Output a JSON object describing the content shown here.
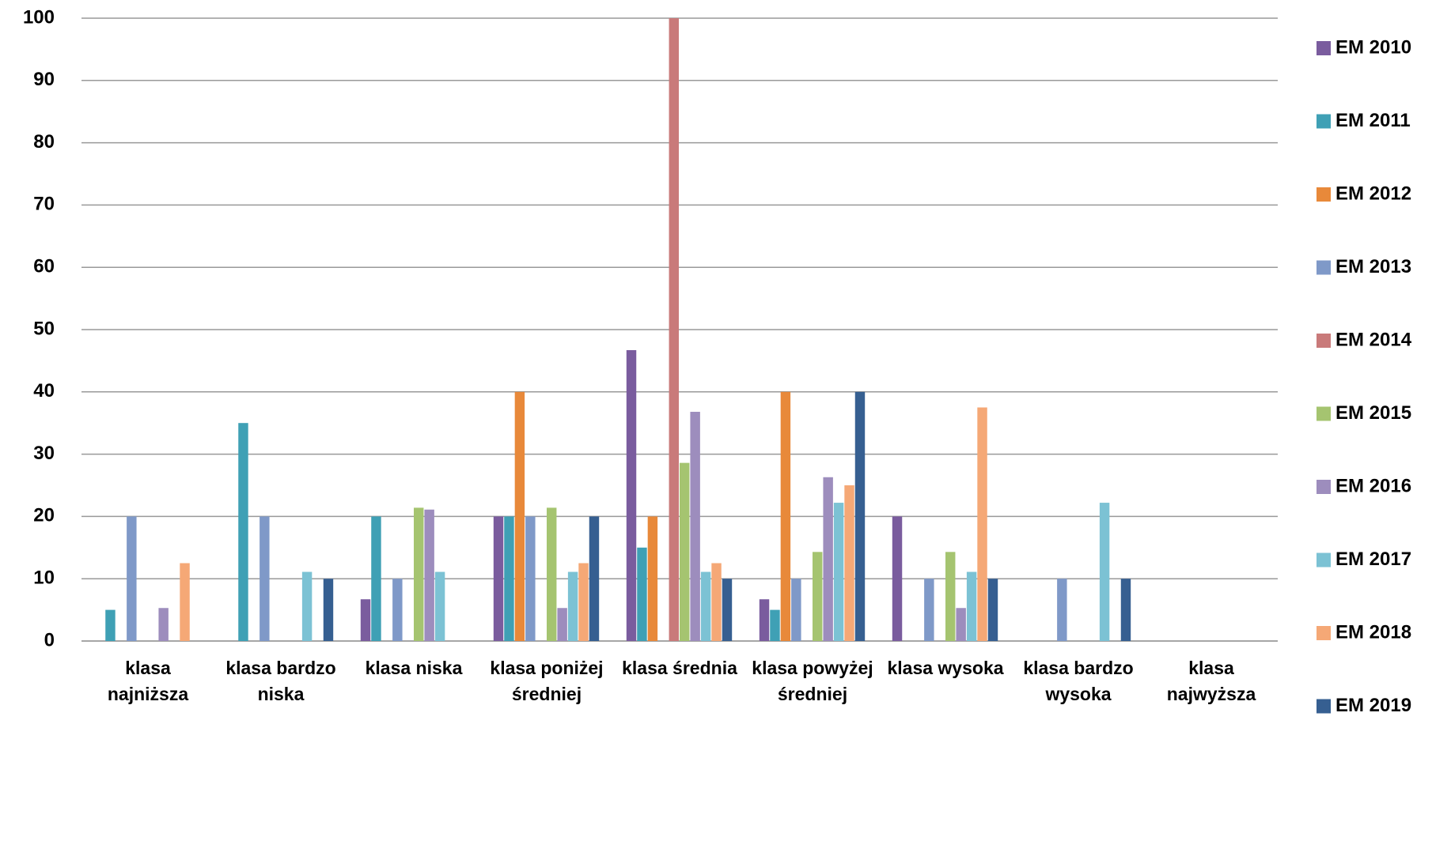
{
  "chart_data": {
    "type": "bar",
    "categories": [
      "klasa najniższa",
      "klasa bardzo niska",
      "klasa niska",
      "klasa poniżej średniej",
      "klasa średnia",
      "klasa powyżej średniej",
      "klasa wysoka",
      "klasa bardzo wysoka",
      "klasa najwyższa"
    ],
    "series": [
      {
        "name": "EM 2010",
        "color": "#7a5c9e",
        "values": [
          0,
          0,
          6.7,
          20,
          46.7,
          6.7,
          20,
          0,
          0
        ]
      },
      {
        "name": "EM 2011",
        "color": "#3fa0b5",
        "values": [
          5,
          35,
          20,
          20,
          15,
          5,
          0,
          0,
          0
        ]
      },
      {
        "name": "EM 2012",
        "color": "#e8893a",
        "values": [
          0,
          0,
          0,
          40,
          20,
          40,
          0,
          0,
          0
        ]
      },
      {
        "name": "EM 2013",
        "color": "#7f99c8",
        "values": [
          20,
          20,
          10,
          20,
          0,
          10,
          10,
          10,
          0
        ]
      },
      {
        "name": "EM 2014",
        "color": "#c97a7a",
        "values": [
          0,
          0,
          0,
          0,
          100,
          0,
          0,
          0,
          0
        ]
      },
      {
        "name": "EM 2015",
        "color": "#a5c470",
        "values": [
          0,
          0,
          21.4,
          21.4,
          28.6,
          14.3,
          14.3,
          0,
          0
        ]
      },
      {
        "name": "EM 2016",
        "color": "#9d8dbd",
        "values": [
          5.3,
          0,
          21.1,
          5.3,
          36.8,
          26.3,
          5.3,
          0,
          0
        ]
      },
      {
        "name": "EM 2017",
        "color": "#7cc2d4",
        "values": [
          0,
          11.1,
          11.1,
          11.1,
          11.1,
          22.2,
          11.1,
          22.2,
          0
        ]
      },
      {
        "name": "EM 2018",
        "color": "#f5a876",
        "values": [
          12.5,
          0,
          0,
          12.5,
          12.5,
          25,
          37.5,
          0,
          0
        ]
      },
      {
        "name": "EM 2019",
        "color": "#365f91",
        "values": [
          0,
          10,
          0,
          20,
          10,
          40,
          10,
          10,
          0
        ]
      }
    ],
    "ylim": [
      0,
      100
    ],
    "yticks": [
      0,
      10,
      20,
      30,
      40,
      50,
      60,
      70,
      80,
      90,
      100
    ],
    "grid": true,
    "legend": "right"
  }
}
